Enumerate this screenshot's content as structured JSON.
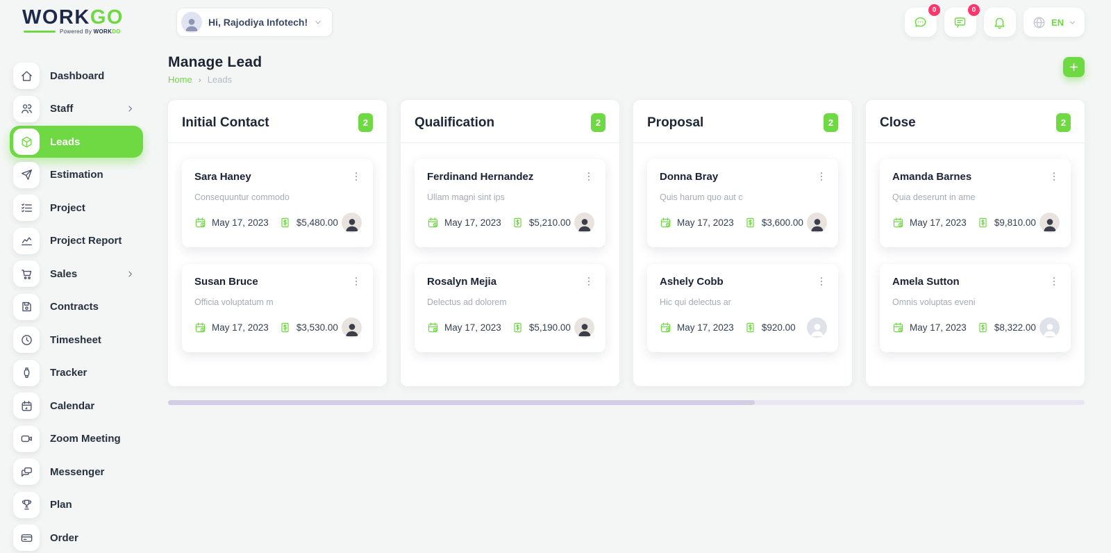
{
  "brand": {
    "primary": "WORK",
    "accent": "GO",
    "powered_by": "Powered By",
    "powered_primary": "WORK",
    "powered_accent": "DO"
  },
  "header": {
    "greeting": "Hi, Rajodiya Infotech!",
    "chat_badge": "0",
    "message_badge": "0",
    "language": "EN",
    "icons": [
      "chat-icon",
      "message-icon",
      "bell-icon",
      "globe-icon",
      "chevron-down-icon"
    ]
  },
  "page": {
    "title": "Manage Lead",
    "breadcrumb_home": "Home",
    "breadcrumb_current": "Leads",
    "add_button_icon": "plus-icon"
  },
  "sidebar": {
    "items": [
      {
        "label": "Dashboard",
        "icon": "home",
        "chevron": false,
        "active": false
      },
      {
        "label": "Staff",
        "icon": "staff",
        "chevron": true,
        "active": false
      },
      {
        "label": "Leads",
        "icon": "cube",
        "chevron": false,
        "active": true
      },
      {
        "label": "Estimation",
        "icon": "send",
        "chevron": false,
        "active": false
      },
      {
        "label": "Project",
        "icon": "list",
        "chevron": false,
        "active": false
      },
      {
        "label": "Project Report",
        "icon": "chart",
        "chevron": false,
        "active": false
      },
      {
        "label": "Sales",
        "icon": "cart",
        "chevron": true,
        "active": false
      },
      {
        "label": "Contracts",
        "icon": "save",
        "chevron": false,
        "active": false
      },
      {
        "label": "Timesheet",
        "icon": "clock",
        "chevron": false,
        "active": false
      },
      {
        "label": "Tracker",
        "icon": "watch",
        "chevron": false,
        "active": false
      },
      {
        "label": "Calendar",
        "icon": "calendar",
        "chevron": false,
        "active": false
      },
      {
        "label": "Zoom Meeting",
        "icon": "video",
        "chevron": false,
        "active": false
      },
      {
        "label": "Messenger",
        "icon": "messenger",
        "chevron": false,
        "active": false
      },
      {
        "label": "Plan",
        "icon": "trophy",
        "chevron": false,
        "active": false
      },
      {
        "label": "Order",
        "icon": "order",
        "chevron": false,
        "active": false
      }
    ]
  },
  "board": {
    "columns": [
      {
        "title": "Initial Contact",
        "count": "2",
        "cards": [
          {
            "name": "Sara Haney",
            "description": "Consequuntur commodo",
            "date": "May 17, 2023",
            "amount": "$5,480.00",
            "avatar": "photo"
          },
          {
            "name": "Susan Bruce",
            "description": "Officia voluptatum m",
            "date": "May 17, 2023",
            "amount": "$3,530.00",
            "avatar": "photo"
          }
        ]
      },
      {
        "title": "Qualification",
        "count": "2",
        "cards": [
          {
            "name": "Ferdinand Hernandez",
            "description": "Ullam magni sint ips",
            "date": "May 17, 2023",
            "amount": "$5,210.00",
            "avatar": "photo"
          },
          {
            "name": "Rosalyn Mejia",
            "description": "Delectus ad dolorem",
            "date": "May 17, 2023",
            "amount": "$5,190.00",
            "avatar": "photo"
          }
        ]
      },
      {
        "title": "Proposal",
        "count": "2",
        "cards": [
          {
            "name": "Donna Bray",
            "description": "Quis harum quo aut c",
            "date": "May 17, 2023",
            "amount": "$3,600.00",
            "avatar": "photo"
          },
          {
            "name": "Ashely Cobb",
            "description": "Hic qui delectus ar",
            "date": "May 17, 2023",
            "amount": "$920.00",
            "avatar": "silhouette"
          }
        ]
      },
      {
        "title": "Close",
        "count": "2",
        "cards": [
          {
            "name": "Amanda Barnes",
            "description": "Quia deserunt in ame",
            "date": "May 17, 2023",
            "amount": "$9,810.00",
            "avatar": "photo"
          },
          {
            "name": "Amela Sutton",
            "description": "Omnis voluptas eveni",
            "date": "May 17, 2023",
            "amount": "$8,322.00",
            "avatar": "silhouette"
          }
        ]
      }
    ]
  },
  "colors": {
    "accent_green": "#6fd943",
    "brand_navy": "#1e2a4a",
    "badge_pink": "#ff366b",
    "scrollbar_lavender": "#d3cde3"
  }
}
